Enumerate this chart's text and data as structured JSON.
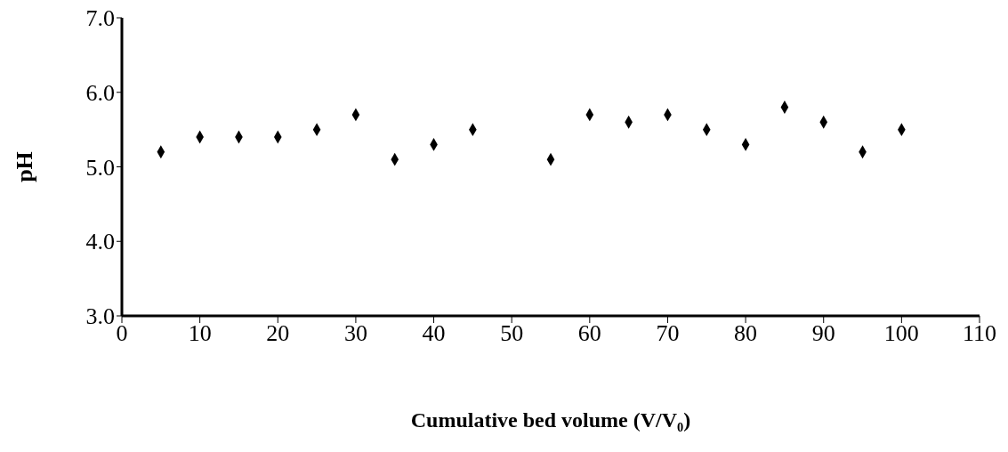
{
  "chart_data": {
    "type": "scatter",
    "xlabel": "Cumulative bed volume (V/V₀)",
    "ylabel": "pH",
    "x": [
      5,
      10,
      15,
      20,
      25,
      30,
      35,
      40,
      45,
      55,
      60,
      65,
      70,
      75,
      80,
      85,
      90,
      95,
      100
    ],
    "series": [
      {
        "color": "#000000",
        "values": [
          5.2,
          5.4,
          5.4,
          5.4,
          5.5,
          5.7,
          5.1,
          5.3,
          5.5,
          5.1,
          5.7,
          5.6,
          5.7,
          5.5,
          5.3,
          5.8,
          5.6,
          5.2,
          5.5
        ]
      }
    ],
    "xlim": [
      0,
      110
    ],
    "xticks": [
      0,
      10,
      20,
      30,
      40,
      50,
      60,
      70,
      80,
      90,
      100,
      110
    ],
    "ylim": [
      3,
      7
    ],
    "yticks": [
      {
        "value": 3,
        "label": "3.0"
      },
      {
        "value": 4,
        "label": "4.0"
      },
      {
        "value": 5,
        "label": "5.0"
      },
      {
        "value": 6,
        "label": "6.0"
      },
      {
        "value": 7,
        "label": "7.0"
      }
    ],
    "grid": false,
    "legend": false,
    "marker": "diamond"
  }
}
